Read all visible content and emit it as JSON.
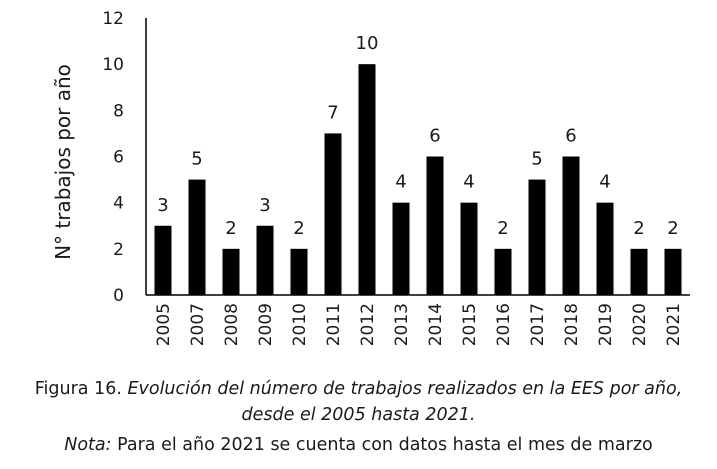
{
  "chart_data": {
    "type": "bar",
    "categories": [
      "2005",
      "2007",
      "2008",
      "2009",
      "2010",
      "2011",
      "2012",
      "2013",
      "2014",
      "2015",
      "2016",
      "2017",
      "2018",
      "2019",
      "2020",
      "2021"
    ],
    "values": [
      3,
      5,
      2,
      3,
      2,
      7,
      10,
      4,
      6,
      4,
      2,
      5,
      6,
      4,
      2,
      2
    ],
    "data_labels": [
      "3",
      "5",
      "2",
      "3",
      "2",
      "7",
      "10",
      "4",
      "6",
      "4",
      "2",
      "5",
      "6",
      "4",
      "2",
      "2"
    ],
    "ylabel": "N° trabajos por año",
    "xlabel": "",
    "ylim": [
      0,
      12
    ],
    "yticks": [
      "0",
      "2",
      "4",
      "6",
      "8",
      "10",
      "12"
    ],
    "bar_color": "#000000",
    "grid": false
  },
  "caption": {
    "line1_prefix": "Figura 16. ",
    "line1_italic": "Evolución del número de trabajos realizados en la EES por año,",
    "line2_italic": "desde el 2005 hasta 2021.",
    "line3_italic": "Nota:",
    "line3_rest": " Para el año 2021 se cuenta con datos hasta el mes de marzo"
  }
}
